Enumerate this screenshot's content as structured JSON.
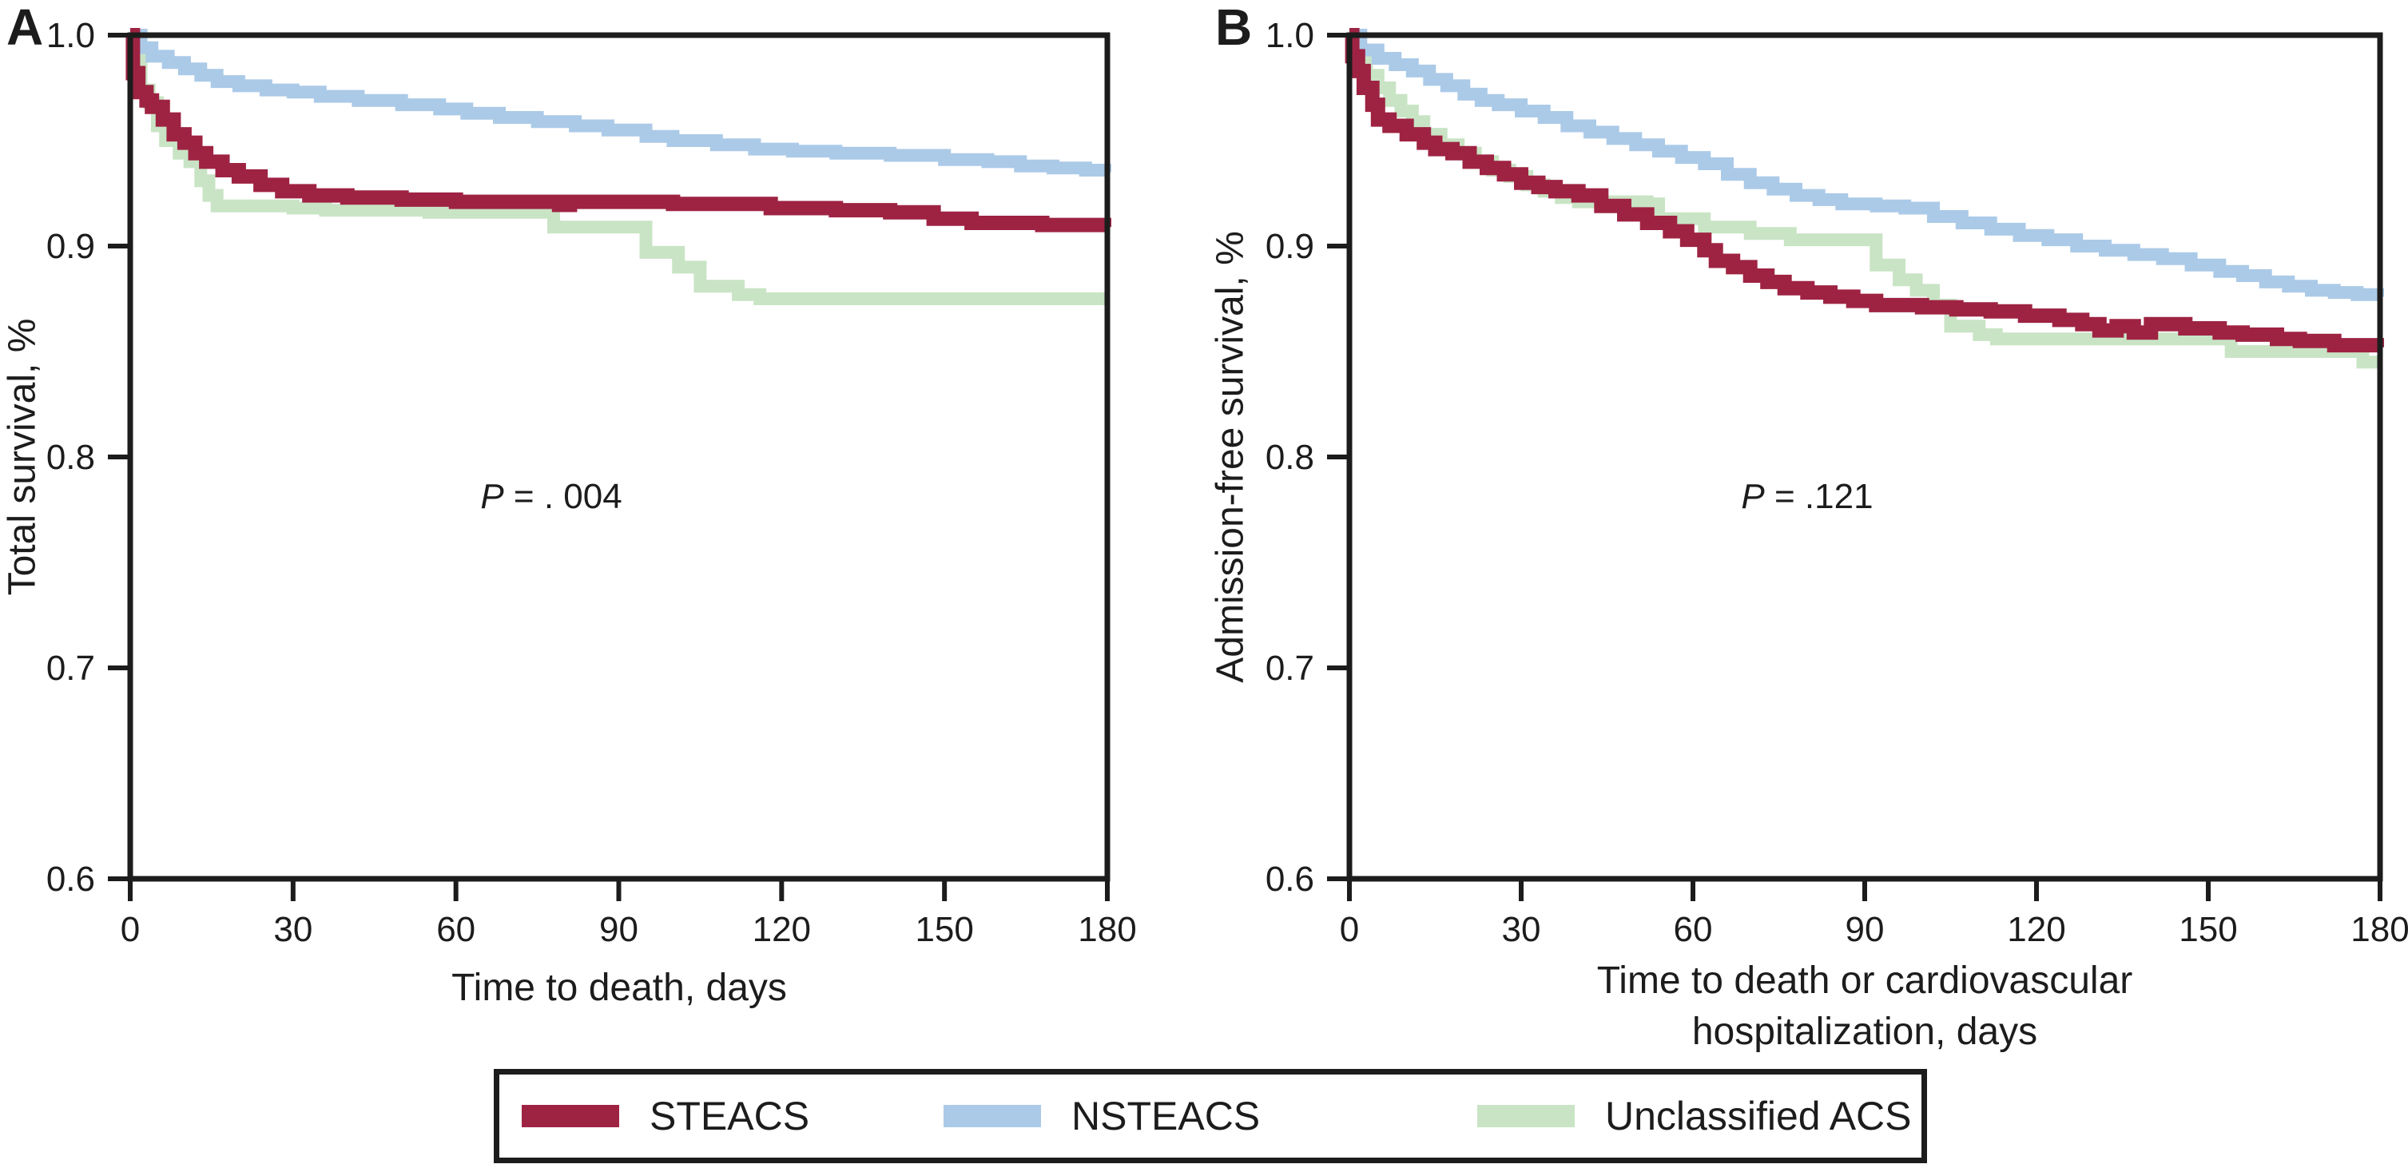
{
  "figure": {
    "background": "#ffffff",
    "axis_color": "#1c1c1c",
    "panels": [
      {
        "label": "A",
        "ylabel": "Total survival, %",
        "xlabel_lines": [
          "Time to death, days"
        ],
        "p_italic": "P",
        "p_rest": " = . 004",
        "x_tick_labels": [
          "0",
          "30",
          "60",
          "90",
          "120",
          "150",
          "180"
        ],
        "y_tick_labels": [
          "1.0",
          "0.9",
          "0.8",
          "0.7",
          "0.6"
        ]
      },
      {
        "label": "B",
        "ylabel": "Admission-free survival, %",
        "xlabel_lines": [
          "Time to death or cardiovascular",
          "hospitalization, days"
        ],
        "p_italic": "P",
        "p_rest": " = .121",
        "x_tick_labels": [
          "0",
          "30",
          "60",
          "90",
          "120",
          "150",
          "180"
        ],
        "y_tick_labels": [
          "1.0",
          "0.9",
          "0.8",
          "0.7",
          "0.6"
        ]
      }
    ],
    "legend": [
      {
        "label": "STEACS",
        "color": "#9e2343"
      },
      {
        "label": "NSTEACS",
        "color": "#abcae8"
      },
      {
        "label": "Unclassified ACS",
        "color": "#c9e4c5"
      }
    ]
  },
  "chart_data": [
    {
      "type": "line",
      "subtype": "kaplan-meier-step",
      "panel": "A",
      "xlabel": "Time to death, days",
      "ylabel": "Total survival, %",
      "annotation": "P = . 004",
      "xlim": [
        0,
        180
      ],
      "ylim": [
        0.6,
        1.0
      ],
      "x_ticks": [
        0,
        30,
        60,
        90,
        120,
        150,
        180
      ],
      "y_ticks": [
        1.0,
        0.9,
        0.8,
        0.7,
        0.6
      ],
      "grid": false,
      "legend_position": "bottom",
      "series": [
        {
          "name": "STEACS",
          "color": "#9e2343",
          "points": [
            [
              0,
              1.0
            ],
            [
              0.5,
              0.982
            ],
            [
              1.5,
              0.973
            ],
            [
              3,
              0.969
            ],
            [
              4,
              0.966
            ],
            [
              6,
              0.96
            ],
            [
              8,
              0.953
            ],
            [
              10,
              0.949
            ],
            [
              12,
              0.944
            ],
            [
              14,
              0.94
            ],
            [
              17,
              0.936
            ],
            [
              20,
              0.933
            ],
            [
              24,
              0.929
            ],
            [
              28,
              0.926
            ],
            [
              33,
              0.924
            ],
            [
              40,
              0.923
            ],
            [
              50,
              0.922
            ],
            [
              60,
              0.921
            ],
            [
              77,
              0.921
            ],
            [
              79,
              0.9195
            ],
            [
              81,
              0.921
            ],
            [
              100,
              0.92
            ],
            [
              118,
              0.918
            ],
            [
              130,
              0.917
            ],
            [
              140,
              0.916
            ],
            [
              148,
              0.913
            ],
            [
              155,
              0.911
            ],
            [
              168,
              0.91
            ],
            [
              180,
              0.909
            ]
          ]
        },
        {
          "name": "NSTEACS",
          "color": "#abcae8",
          "points": [
            [
              0,
              1.0
            ],
            [
              2,
              0.994
            ],
            [
              4,
              0.99
            ],
            [
              7,
              0.987
            ],
            [
              10,
              0.984
            ],
            [
              13,
              0.981
            ],
            [
              16,
              0.978
            ],
            [
              20,
              0.976
            ],
            [
              25,
              0.974
            ],
            [
              30,
              0.973
            ],
            [
              35,
              0.971
            ],
            [
              42,
              0.969
            ],
            [
              50,
              0.967
            ],
            [
              57,
              0.965
            ],
            [
              62,
              0.963
            ],
            [
              68,
              0.961
            ],
            [
              75,
              0.959
            ],
            [
              82,
              0.957
            ],
            [
              88,
              0.955
            ],
            [
              95,
              0.952
            ],
            [
              100,
              0.95
            ],
            [
              108,
              0.948
            ],
            [
              115,
              0.946
            ],
            [
              122,
              0.945
            ],
            [
              130,
              0.944
            ],
            [
              140,
              0.943
            ],
            [
              150,
              0.941
            ],
            [
              158,
              0.94
            ],
            [
              164,
              0.938
            ],
            [
              170,
              0.937
            ],
            [
              176,
              0.936
            ],
            [
              180,
              0.935
            ]
          ]
        },
        {
          "name": "Unclassified ACS",
          "color": "#c9e4c5",
          "points": [
            [
              0,
              1.0
            ],
            [
              0.8,
              0.988
            ],
            [
              2,
              0.974
            ],
            [
              3.5,
              0.968
            ],
            [
              5,
              0.957
            ],
            [
              6.5,
              0.95
            ],
            [
              9,
              0.944
            ],
            [
              11,
              0.94
            ],
            [
              13,
              0.931
            ],
            [
              14.5,
              0.924
            ],
            [
              16,
              0.919
            ],
            [
              30,
              0.918
            ],
            [
              36,
              0.917
            ],
            [
              55,
              0.916
            ],
            [
              78,
              0.909
            ],
            [
              95,
              0.897
            ],
            [
              101,
              0.89
            ],
            [
              105,
              0.881
            ],
            [
              112,
              0.877
            ],
            [
              116,
              0.875
            ],
            [
              180,
              0.875
            ]
          ]
        }
      ]
    },
    {
      "type": "line",
      "subtype": "kaplan-meier-step",
      "panel": "B",
      "xlabel": "Time to death or cardiovascular hospitalization, days",
      "ylabel": "Admission-free survival, %",
      "annotation": "P = .121",
      "xlim": [
        0,
        180
      ],
      "ylim": [
        0.6,
        1.0
      ],
      "x_ticks": [
        0,
        30,
        60,
        90,
        120,
        150,
        180
      ],
      "y_ticks": [
        1.0,
        0.9,
        0.8,
        0.7,
        0.6
      ],
      "grid": false,
      "legend_position": "bottom",
      "series": [
        {
          "name": "STEACS",
          "color": "#9e2343",
          "points": [
            [
              0,
              1.0
            ],
            [
              0.5,
              0.99
            ],
            [
              1.5,
              0.983
            ],
            [
              2.5,
              0.975
            ],
            [
              4,
              0.967
            ],
            [
              5,
              0.96
            ],
            [
              7,
              0.957
            ],
            [
              10,
              0.953
            ],
            [
              13,
              0.949
            ],
            [
              15,
              0.946
            ],
            [
              18,
              0.944
            ],
            [
              21,
              0.94
            ],
            [
              24,
              0.937
            ],
            [
              27,
              0.934
            ],
            [
              30,
              0.93
            ],
            [
              33,
              0.928
            ],
            [
              36,
              0.926
            ],
            [
              40,
              0.924
            ],
            [
              44,
              0.919
            ],
            [
              48,
              0.915
            ],
            [
              52,
              0.911
            ],
            [
              56,
              0.907
            ],
            [
              59,
              0.903
            ],
            [
              62,
              0.898
            ],
            [
              64,
              0.893
            ],
            [
              67,
              0.89
            ],
            [
              70,
              0.886
            ],
            [
              73,
              0.883
            ],
            [
              76,
              0.88
            ],
            [
              80,
              0.878
            ],
            [
              84,
              0.876
            ],
            [
              88,
              0.874
            ],
            [
              92,
              0.872
            ],
            [
              100,
              0.871
            ],
            [
              106,
              0.87
            ],
            [
              112,
              0.869
            ],
            [
              118,
              0.867
            ],
            [
              124,
              0.865
            ],
            [
              128,
              0.863
            ],
            [
              131,
              0.86
            ],
            [
              134,
              0.862
            ],
            [
              137,
              0.859
            ],
            [
              140,
              0.863
            ],
            [
              146,
              0.861
            ],
            [
              152,
              0.859
            ],
            [
              156,
              0.858
            ],
            [
              162,
              0.856
            ],
            [
              166,
              0.855
            ],
            [
              172,
              0.853
            ],
            [
              180,
              0.852
            ]
          ]
        },
        {
          "name": "NSTEACS",
          "color": "#abcae8",
          "points": [
            [
              0,
              1.0
            ],
            [
              2,
              0.993
            ],
            [
              5,
              0.989
            ],
            [
              8,
              0.986
            ],
            [
              11,
              0.983
            ],
            [
              14,
              0.979
            ],
            [
              17,
              0.976
            ],
            [
              20,
              0.972
            ],
            [
              23,
              0.969
            ],
            [
              26,
              0.967
            ],
            [
              30,
              0.964
            ],
            [
              34,
              0.961
            ],
            [
              38,
              0.957
            ],
            [
              42,
              0.954
            ],
            [
              46,
              0.951
            ],
            [
              50,
              0.948
            ],
            [
              54,
              0.945
            ],
            [
              58,
              0.942
            ],
            [
              62,
              0.939
            ],
            [
              66,
              0.934
            ],
            [
              70,
              0.93
            ],
            [
              74,
              0.927
            ],
            [
              78,
              0.924
            ],
            [
              82,
              0.922
            ],
            [
              86,
              0.92
            ],
            [
              92,
              0.919
            ],
            [
              97,
              0.918
            ],
            [
              102,
              0.914
            ],
            [
              107,
              0.911
            ],
            [
              112,
              0.908
            ],
            [
              117,
              0.905
            ],
            [
              122,
              0.903
            ],
            [
              127,
              0.9
            ],
            [
              132,
              0.898
            ],
            [
              137,
              0.896
            ],
            [
              142,
              0.894
            ],
            [
              147,
              0.891
            ],
            [
              152,
              0.888
            ],
            [
              156,
              0.886
            ],
            [
              160,
              0.883
            ],
            [
              164,
              0.881
            ],
            [
              168,
              0.879
            ],
            [
              172,
              0.878
            ],
            [
              176,
              0.877
            ],
            [
              180,
              0.876
            ]
          ]
        },
        {
          "name": "Unclassified ACS",
          "color": "#c9e4c5",
          "points": [
            [
              0,
              1.0
            ],
            [
              1,
              0.991
            ],
            [
              2,
              0.987
            ],
            [
              3,
              0.981
            ],
            [
              5,
              0.975
            ],
            [
              7,
              0.969
            ],
            [
              9,
              0.964
            ],
            [
              11,
              0.959
            ],
            [
              13,
              0.953
            ],
            [
              16,
              0.948
            ],
            [
              19,
              0.944
            ],
            [
              22,
              0.94
            ],
            [
              25,
              0.936
            ],
            [
              28,
              0.933
            ],
            [
              31,
              0.929
            ],
            [
              34,
              0.926
            ],
            [
              37,
              0.923
            ],
            [
              40,
              0.921
            ],
            [
              52,
              0.92
            ],
            [
              54,
              0.913
            ],
            [
              62,
              0.909
            ],
            [
              70,
              0.906
            ],
            [
              77,
              0.903
            ],
            [
              92,
              0.891
            ],
            [
              96,
              0.884
            ],
            [
              99,
              0.879
            ],
            [
              102,
              0.872
            ],
            [
              105,
              0.862
            ],
            [
              110,
              0.858
            ],
            [
              113,
              0.856
            ],
            [
              150,
              0.856
            ],
            [
              154,
              0.85
            ],
            [
              176,
              0.85
            ],
            [
              177,
              0.845
            ],
            [
              180,
              0.845
            ]
          ]
        }
      ]
    }
  ]
}
